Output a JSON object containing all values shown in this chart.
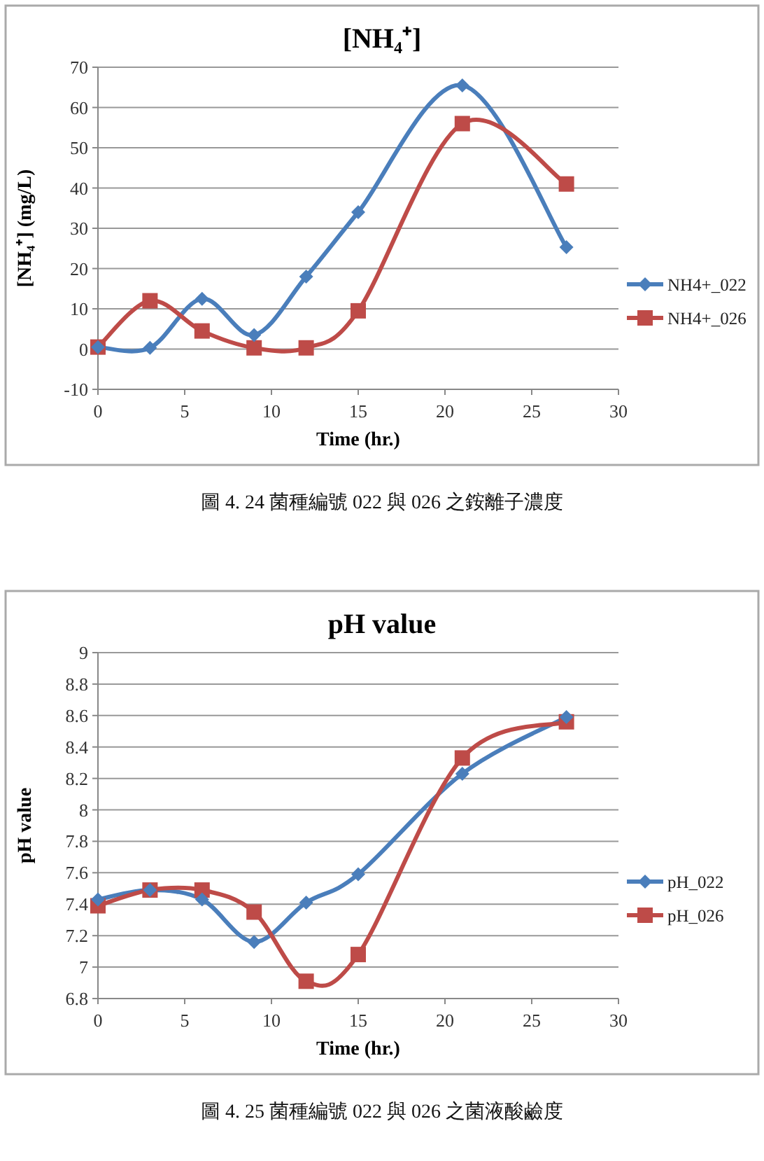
{
  "chart_data": [
    {
      "type": "line",
      "title": "[NH₄⁺]",
      "xlabel": "Time (hr.)",
      "ylabel": "[NH₄⁺] (mg/L)",
      "x": [
        0,
        3,
        6,
        9,
        12,
        15,
        21,
        27
      ],
      "xlim": [
        0,
        30
      ],
      "xticks": [
        0,
        5,
        10,
        15,
        20,
        25,
        30
      ],
      "ylim": [
        -10,
        70
      ],
      "yticks": [
        -10,
        0,
        10,
        20,
        30,
        40,
        50,
        60,
        70
      ],
      "grid": "y",
      "legend": "right",
      "series": [
        {
          "name": "NH4+_022",
          "color": "#4a7ebb",
          "marker": "diamond",
          "values": [
            0.5,
            0.3,
            12.5,
            3.5,
            18,
            34,
            65.5,
            25.3
          ]
        },
        {
          "name": "NH4+_026",
          "color": "#be4b48",
          "marker": "square",
          "values": [
            0.5,
            12,
            4.5,
            0.3,
            0.3,
            9.5,
            56,
            41
          ]
        }
      ],
      "annotations": [
        "圖 4. 24  菌種編號 022 與 026 之銨離子濃度"
      ]
    },
    {
      "type": "line",
      "title": "pH value",
      "xlabel": "Time (hr.)",
      "ylabel": "pH value",
      "x": [
        0,
        3,
        6,
        9,
        12,
        15,
        21,
        27
      ],
      "xlim": [
        0,
        30
      ],
      "xticks": [
        0,
        5,
        10,
        15,
        20,
        25,
        30
      ],
      "ylim": [
        6.8,
        9
      ],
      "yticks": [
        6.8,
        7,
        7.2,
        7.4,
        7.6,
        7.8,
        8,
        8.2,
        8.4,
        8.6,
        8.8,
        9
      ],
      "grid": "y",
      "legend": "right",
      "series": [
        {
          "name": "pH_022",
          "color": "#4a7ebb",
          "marker": "diamond",
          "values": [
            7.43,
            7.49,
            7.43,
            7.16,
            7.41,
            7.59,
            8.23,
            8.59
          ]
        },
        {
          "name": "pH_026",
          "color": "#be4b48",
          "marker": "square",
          "values": [
            7.39,
            7.49,
            7.49,
            7.35,
            6.91,
            7.08,
            8.33,
            8.56
          ]
        }
      ],
      "annotations": [
        "圖 4. 25  菌種編號 022 與 026 之菌液酸鹼度"
      ]
    }
  ]
}
